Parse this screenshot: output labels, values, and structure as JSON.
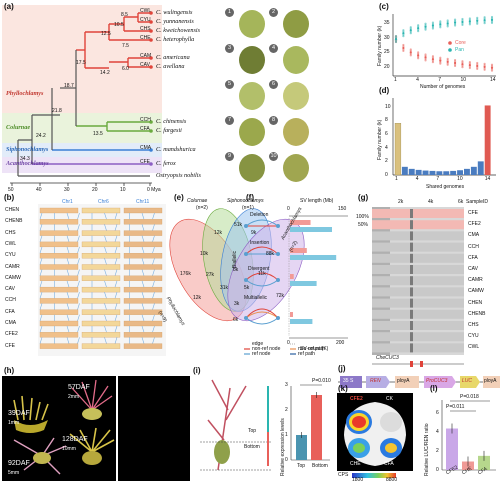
{
  "panels": {
    "a": "(a)",
    "b": "(b)",
    "c": "(c)",
    "d": "(d)",
    "e": "(e)",
    "f": "(f)",
    "g": "(g)",
    "h": "(h)",
    "i": "(i)",
    "j": "(j)",
    "k": "(k)",
    "l": "(l)"
  },
  "tree": {
    "species": [
      "C. wulingensis",
      "C. yunnanensis",
      "C. kweichowensis",
      "C. heterophylla",
      "C. americana",
      "C. avellana",
      "C. chinensis",
      "C. fargesii",
      "C. mandshurica",
      "C. ferox",
      "Ostryopsis nobilis"
    ],
    "codes": [
      "CWL",
      "CYU",
      "CHS",
      "CHE",
      "CAM",
      "CAV",
      "CCH",
      "CFA",
      "CMA",
      "CFE"
    ],
    "node_ages": [
      "8.5",
      "10.5",
      "12.5",
      "7.5",
      "17.5",
      "6.0",
      "14.2",
      "18.7",
      "21.8",
      "13.5",
      "24.2",
      "34.3"
    ],
    "clades": [
      "Phyllochlamys",
      "Colurnae",
      "Siphonochlamys",
      "Acanthochlamys"
    ],
    "axis_ticks": [
      "50",
      "40",
      "30",
      "20",
      "10",
      "0 Mya"
    ]
  },
  "photos": [
    "1",
    "2",
    "3",
    "4",
    "5",
    "6",
    "7",
    "8",
    "9",
    "10"
  ],
  "colors": {
    "phyllo": "#e0443a",
    "colurnae": "#6aaa3e",
    "siphono": "#3a7fd5",
    "acantho": "#8c5ec4",
    "core": "#e8605a",
    "pan": "#2ab5b0",
    "bar_blue": "#4a7cc0",
    "bar_red": "#e05a52",
    "bar_tan": "#d9c07e"
  },
  "panel_b": {
    "rows": [
      "CHEN",
      "CHENB",
      "CHS",
      "CWL",
      "CYU",
      "CAMR",
      "CAMW",
      "CAV",
      "CCH",
      "CFA",
      "CMA",
      "CFE2",
      "CFE"
    ],
    "chr_labels": [
      "Chr1",
      "Chr6",
      "Chr11"
    ]
  },
  "chart_data": [
    {
      "type": "scatter",
      "id": "c",
      "xlabel": "Number of genomes",
      "ylabel": "Family number (k)",
      "xticks": [
        1,
        4,
        7,
        10,
        14
      ],
      "yticks": [
        20,
        25,
        30,
        35
      ],
      "ylim": [
        17,
        38
      ],
      "series": [
        {
          "name": "Core",
          "x": [
            1,
            2,
            3,
            4,
            5,
            6,
            7,
            8,
            9,
            10,
            11,
            12,
            13,
            14
          ],
          "values": [
            29.5,
            26.5,
            25,
            24,
            23.3,
            22.7,
            22.2,
            21.8,
            21.4,
            21.0,
            20.7,
            20.4,
            20.1,
            19.8
          ]
        },
        {
          "name": "Pan",
          "x": [
            1,
            2,
            3,
            4,
            5,
            6,
            7,
            8,
            9,
            10,
            11,
            12,
            13,
            14
          ],
          "values": [
            29.5,
            31.5,
            32.5,
            33.2,
            33.7,
            34.1,
            34.5,
            34.8,
            35.1,
            35.3,
            35.5,
            35.7,
            35.9,
            36.0
          ]
        }
      ]
    },
    {
      "type": "bar",
      "id": "d",
      "xlabel": "Shared genomes",
      "ylabel": "Family number (k)",
      "categories": [
        1,
        2,
        3,
        4,
        5,
        6,
        7,
        8,
        9,
        10,
        11,
        12,
        13,
        14
      ],
      "values": [
        7.6,
        1.2,
        0.9,
        0.75,
        0.65,
        0.6,
        0.55,
        0.55,
        0.6,
        0.7,
        0.9,
        1.2,
        2.0,
        10.2
      ],
      "xticks": [
        "1",
        "4",
        "7",
        "10",
        "14"
      ],
      "yticks": [
        "0",
        "2",
        "4",
        "6",
        "8",
        "10"
      ],
      "ylim": [
        0,
        11
      ]
    },
    {
      "type": "bar",
      "id": "f",
      "title": "SV length (Mb)",
      "categories": [
        "Deletion",
        "Insertion",
        "Divergent",
        "Multiallelic"
      ],
      "series": [
        {
          "name": "SV length",
          "values": [
            55,
            45,
            10,
            8
          ]
        },
        {
          "name": "SV count",
          "values": [
            150,
            165,
            95,
            80
          ]
        }
      ],
      "top_ticks": [
        "0",
        "150"
      ],
      "bottom_ticks": [
        "0",
        "200"
      ],
      "xlabel": "SV count (K)"
    },
    {
      "type": "bar",
      "id": "i",
      "ylabel": "Relative expression levels",
      "categories": [
        "Top",
        "Bottom"
      ],
      "values": [
        1.0,
        2.6
      ],
      "ylim": [
        0,
        3
      ],
      "yticks": [
        "0",
        "1",
        "2",
        "3"
      ],
      "annotation": "P=0.010"
    },
    {
      "type": "bar",
      "id": "l",
      "ylabel": "Relative LUC/REN ratio",
      "categories": [
        "CFE2",
        "CHE",
        "CFA"
      ],
      "values": [
        4.4,
        0.9,
        1.5
      ],
      "ylim": [
        0,
        7
      ],
      "yticks": [
        "0",
        "2",
        "4",
        "6"
      ],
      "annotations": [
        "P=0.018",
        "P=0.011"
      ]
    }
  ],
  "panel_e": {
    "sets": [
      "Colurnae",
      "(n=2)",
      "Siphonochlamys",
      "(n=1)",
      "Phyllochlamys",
      "(n=9)",
      "Acanthochlamys",
      "(n=2)"
    ],
    "values": [
      "51k",
      "12k",
      "9k",
      "10k",
      "176k",
      "88k",
      "27k",
      "8k",
      "11k",
      "31k",
      "5k",
      "12k",
      "3k",
      "72k",
      "6k"
    ]
  },
  "panel_f": {
    "groups": [
      "Biallelic",
      "Multiallelic"
    ],
    "legend": [
      "edge",
      "non-ref node",
      "non-ref path",
      "ref node",
      "ref path"
    ]
  },
  "panel_g": {
    "ticks": [
      "2k",
      "4k",
      "6k"
    ],
    "sampleid_header": "SampleID",
    "samples": [
      "CFE",
      "CFE2",
      "CMA",
      "CCH",
      "CFA",
      "CAV",
      "CAMR",
      "CAMW",
      "CHEN",
      "CHENB",
      "CHS",
      "CYU",
      "CWL"
    ],
    "pct": [
      "100%",
      "50%"
    ],
    "gene": "CheCUC3"
  },
  "panel_h": {
    "labels": [
      "39DAF",
      "57DAF",
      "92DAF",
      "128DAF"
    ],
    "scales": [
      "1mm",
      "2mm",
      "5mm",
      "10mm"
    ]
  },
  "panel_i": {
    "marks": [
      "Top",
      "Bottom"
    ]
  },
  "panel_j": {
    "boxes": [
      "35 S",
      "REN",
      "ployA",
      "ProCUC3",
      "LUC",
      "ployA"
    ]
  },
  "panel_k": {
    "labels": [
      "CFE2",
      "CK",
      "CHE",
      "CFA"
    ],
    "cps": "CPS",
    "cps_min": "1800",
    "cps_max": "8800"
  }
}
